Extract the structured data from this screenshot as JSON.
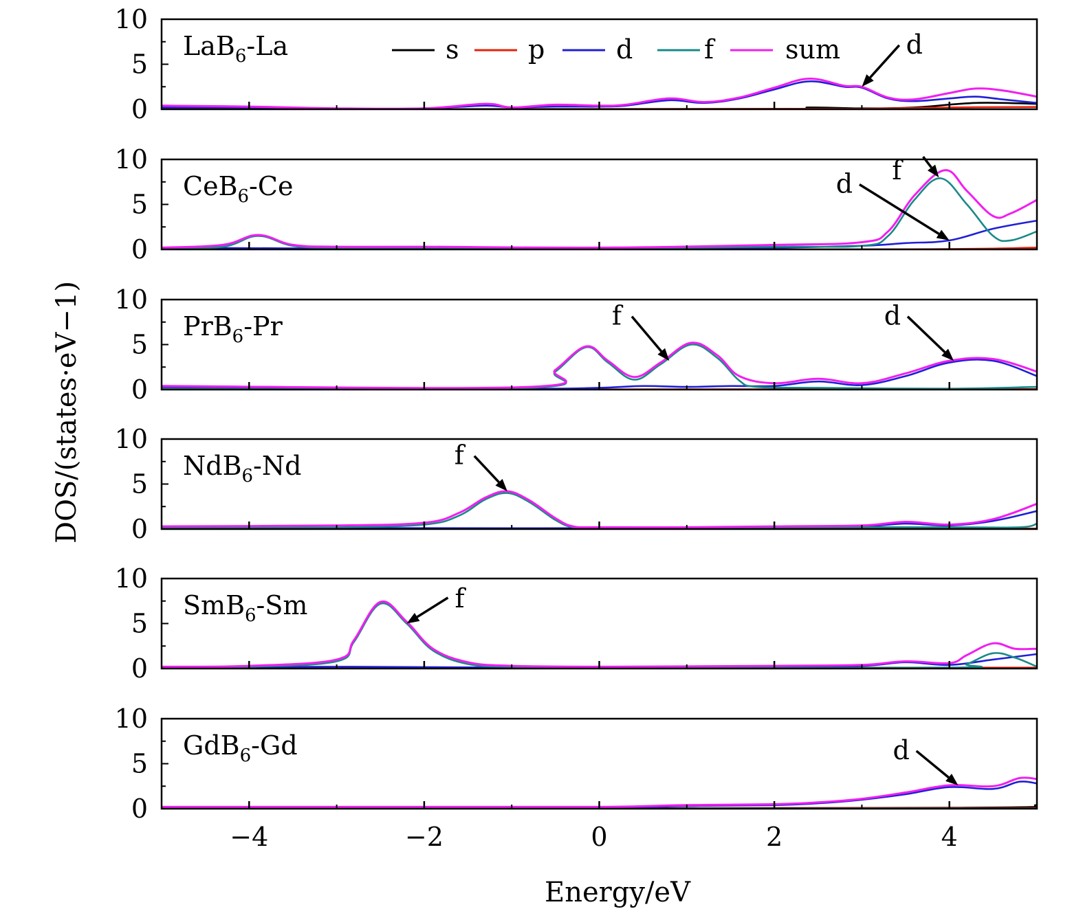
{
  "chart_data": {
    "type": "line",
    "xlabel": "Energy/eV",
    "ylabel": "DOS/(states·eV−1)",
    "xlim": [
      -5,
      5
    ],
    "ylim": [
      0,
      10
    ],
    "xticks": [
      -4,
      -2,
      0,
      2,
      4
    ],
    "xtick_labels": [
      "−4",
      "−2",
      "0",
      "2",
      "4"
    ],
    "yticks": [
      0,
      5,
      10
    ],
    "ytick_labels": [
      "0",
      "5",
      "10"
    ],
    "legend": {
      "placement": "top, inside first panel",
      "entries": [
        {
          "name": "s",
          "color": "#000000"
        },
        {
          "name": "p",
          "color": "#e8210d"
        },
        {
          "name": "d",
          "color": "#1f1fd6"
        },
        {
          "name": "f",
          "color": "#1a8a87"
        },
        {
          "name": "sum",
          "color": "#f01ff0"
        }
      ]
    },
    "panels": [
      {
        "title": "LaB",
        "title_sub": "6",
        "title_suffix": "-La",
        "series": [
          {
            "name": "s",
            "x": [
              -5,
              1.8,
              2.4,
              3,
              3.6,
              4.3,
              5
            ],
            "y": [
              0,
              0,
              0.2,
              0.1,
              0.2,
              0.7,
              0.6
            ]
          },
          {
            "name": "p",
            "x": [
              -5,
              2,
              3,
              4,
              5
            ],
            "y": [
              0,
              0.05,
              0.05,
              0.2,
              0.25
            ]
          },
          {
            "name": "d",
            "x": [
              -5,
              -4,
              -3,
              -2,
              -1.3,
              -1,
              -0.5,
              0,
              0.3,
              0.8,
              1.2,
              1.6,
              2,
              2.4,
              2.8,
              3,
              3.3,
              3.6,
              4,
              4.3,
              4.6,
              5
            ],
            "y": [
              0.2,
              0.2,
              0.05,
              0.1,
              0.4,
              0.2,
              0.3,
              0.3,
              0.4,
              1.0,
              0.7,
              1.2,
              2.2,
              3.1,
              2.5,
              2.4,
              1.2,
              0.9,
              1.2,
              1.4,
              1.1,
              0.7
            ]
          },
          {
            "name": "f",
            "x": [
              -5,
              4,
              5
            ],
            "y": [
              0,
              0,
              0
            ]
          },
          {
            "name": "sum",
            "x": [
              -5,
              -4,
              -3,
              -2,
              -1.3,
              -1,
              -0.5,
              0,
              0.3,
              0.8,
              1.2,
              1.6,
              2,
              2.4,
              2.8,
              3,
              3.3,
              3.6,
              4,
              4.3,
              4.6,
              5
            ],
            "y": [
              0.4,
              0.3,
              0.1,
              0.1,
              0.6,
              0.2,
              0.5,
              0.4,
              0.5,
              1.2,
              0.8,
              1.3,
              2.4,
              3.4,
              2.6,
              2.5,
              1.3,
              1.1,
              1.8,
              2.3,
              2.1,
              1.4
            ]
          }
        ],
        "annotations": [
          {
            "text": "d",
            "text_x": 3.6,
            "text_y": 6.2,
            "arrow_to": [
              3.0,
              2.5
            ]
          }
        ]
      },
      {
        "title": "CeB",
        "title_sub": "6",
        "title_suffix": "-Ce",
        "series": [
          {
            "name": "s",
            "x": [
              -5,
              5
            ],
            "y": [
              0,
              0
            ]
          },
          {
            "name": "p",
            "x": [
              -5,
              3,
              5
            ],
            "y": [
              0,
              0,
              0.2
            ]
          },
          {
            "name": "d",
            "x": [
              -5,
              -3,
              -1,
              0,
              2,
              3,
              3.5,
              4,
              4.5,
              5
            ],
            "y": [
              0.2,
              0.1,
              0.1,
              0.1,
              0.2,
              0.4,
              0.7,
              1.0,
              2.3,
              3.2
            ]
          },
          {
            "name": "f",
            "x": [
              -5,
              -4.3,
              -3.9,
              -3.5,
              -3,
              -2,
              0,
              2,
              3,
              3.3,
              3.6,
              3.9,
              4.2,
              4.5,
              4.7,
              5
            ],
            "y": [
              0.1,
              0.3,
              1.5,
              0.4,
              0.2,
              0.2,
              0.1,
              0.3,
              0.4,
              1.5,
              5.5,
              7.9,
              5.0,
              1.5,
              1.0,
              2.0
            ]
          },
          {
            "name": "sum",
            "x": [
              -5,
              -4.3,
              -3.9,
              -3.5,
              -3,
              -2,
              0,
              2,
              3,
              3.3,
              3.6,
              3.95,
              4.2,
              4.5,
              4.7,
              5
            ],
            "y": [
              0.2,
              0.5,
              1.6,
              0.5,
              0.3,
              0.3,
              0.2,
              0.5,
              0.8,
              2.0,
              6.0,
              8.8,
              6.5,
              3.7,
              4.0,
              5.5
            ]
          }
        ],
        "annotations": [
          {
            "text": "f",
            "text_x": 3.4,
            "text_y": 7.8,
            "arrow_to": [
              3.88,
              8.0
            ],
            "arrow_from": [
              3.7,
              10.3
            ]
          },
          {
            "text": "d",
            "text_x": 2.8,
            "text_y": 6.3,
            "arrow_to": [
              4.0,
              1.0
            ]
          }
        ]
      },
      {
        "title": "PrB",
        "title_sub": "6",
        "title_suffix": "-Pr",
        "series": [
          {
            "name": "s",
            "x": [
              -5,
              5
            ],
            "y": [
              0,
              0
            ]
          },
          {
            "name": "p",
            "x": [
              -5,
              5
            ],
            "y": [
              0,
              0.05
            ]
          },
          {
            "name": "d",
            "x": [
              -5,
              -1,
              0,
              0.5,
              1,
              1.5,
              2,
              2.5,
              3,
              3.5,
              4,
              4.5,
              5
            ],
            "y": [
              0.3,
              0.1,
              0.2,
              0.4,
              0.3,
              0.4,
              0.4,
              0.9,
              0.5,
              1.5,
              3.0,
              3.2,
              1.5
            ]
          },
          {
            "name": "f",
            "x": [
              -5,
              -0.8,
              -0.5,
              -0.15,
              0.1,
              0.4,
              0.7,
              1.05,
              1.35,
              1.6,
              1.8,
              2.5,
              4,
              5
            ],
            "y": [
              0.1,
              0.2,
              2.0,
              4.7,
              3.0,
              1.1,
              2.8,
              5.0,
              3.5,
              1.0,
              0.3,
              0.2,
              0.1,
              0.3
            ]
          },
          {
            "name": "sum",
            "x": [
              -5,
              -0.8,
              -0.5,
              -0.15,
              0.1,
              0.4,
              0.7,
              1.05,
              1.35,
              1.6,
              2,
              2.5,
              3,
              3.5,
              4,
              4.5,
              5
            ],
            "y": [
              0.4,
              0.3,
              2.2,
              4.8,
              3.2,
              1.4,
              3.0,
              5.2,
              3.8,
              1.5,
              0.7,
              1.2,
              0.7,
              1.8,
              3.2,
              3.4,
              2.0
            ]
          }
        ],
        "annotations": [
          {
            "text": "f",
            "text_x": 0.2,
            "text_y": 7.2,
            "arrow_to": [
              0.8,
              3.2
            ]
          },
          {
            "text": "d",
            "text_x": 3.35,
            "text_y": 7.2,
            "arrow_to": [
              4.05,
              3.2
            ]
          }
        ]
      },
      {
        "title": "NdB",
        "title_sub": "6",
        "title_suffix": "-Nd",
        "series": [
          {
            "name": "s",
            "x": [
              -5,
              5
            ],
            "y": [
              0,
              0
            ]
          },
          {
            "name": "p",
            "x": [
              -5,
              5
            ],
            "y": [
              0,
              0.05
            ]
          },
          {
            "name": "d",
            "x": [
              -5,
              -2,
              0,
              2,
              3,
              3.5,
              4,
              4.5,
              5
            ],
            "y": [
              0.2,
              0.1,
              0.1,
              0.2,
              0.3,
              0.6,
              0.4,
              0.9,
              2.0
            ]
          },
          {
            "name": "f",
            "x": [
              -5,
              -3,
              -2,
              -1.6,
              -1.3,
              -1.05,
              -0.8,
              -0.5,
              -0.3,
              0,
              2,
              4,
              4.8,
              5
            ],
            "y": [
              0.1,
              0.2,
              0.5,
              1.5,
              3.3,
              4.0,
              3.0,
              1.0,
              0.2,
              0.1,
              0.2,
              0.2,
              0.2,
              0.6
            ]
          },
          {
            "name": "sum",
            "x": [
              -5,
              -3,
              -2,
              -1.6,
              -1.3,
              -1.05,
              -0.8,
              -0.5,
              -0.3,
              0,
              1,
              2,
              3,
              3.5,
              4,
              4.5,
              5
            ],
            "y": [
              0.3,
              0.4,
              0.7,
              1.8,
              3.5,
              4.2,
              3.2,
              1.2,
              0.3,
              0.2,
              0.2,
              0.3,
              0.4,
              0.8,
              0.5,
              1.1,
              2.8
            ]
          }
        ],
        "annotations": [
          {
            "text": "f",
            "text_x": -1.6,
            "text_y": 7.2,
            "arrow_to": [
              -1.05,
              4.2
            ]
          }
        ]
      },
      {
        "title": "SmB",
        "title_sub": "6",
        "title_suffix": "-Sm",
        "series": [
          {
            "name": "s",
            "x": [
              -5,
              5
            ],
            "y": [
              0,
              0
            ]
          },
          {
            "name": "p",
            "x": [
              -5,
              3,
              5
            ],
            "y": [
              0,
              0.1,
              0.1
            ]
          },
          {
            "name": "d",
            "x": [
              -5,
              -3,
              -1,
              0,
              2,
              3,
              3.5,
              4,
              4.5,
              5
            ],
            "y": [
              0.1,
              0.2,
              0.1,
              0.1,
              0.2,
              0.3,
              0.7,
              0.4,
              1.0,
              1.6
            ]
          },
          {
            "name": "f",
            "x": [
              -5,
              -4,
              -3,
              -2.8,
              -2.5,
              -2.2,
              -1.9,
              -1.5,
              -1,
              0,
              4,
              4.2,
              4.5,
              4.75,
              5
            ],
            "y": [
              0.1,
              0.2,
              0.8,
              3.0,
              7.2,
              5.0,
              2.0,
              0.5,
              0.2,
              0.1,
              0.1,
              0.5,
              1.7,
              1.2,
              0.2
            ]
          },
          {
            "name": "sum",
            "x": [
              -5,
              -4,
              -3,
              -2.8,
              -2.5,
              -2.2,
              -1.9,
              -1.5,
              -1,
              0,
              2,
              3,
              3.5,
              4,
              4.2,
              4.5,
              4.75,
              5
            ],
            "y": [
              0.2,
              0.3,
              1.0,
              3.2,
              7.4,
              5.2,
              2.2,
              0.7,
              0.3,
              0.2,
              0.3,
              0.4,
              0.8,
              0.6,
              1.5,
              2.8,
              2.2,
              2.2
            ]
          }
        ],
        "annotations": [
          {
            "text": "f",
            "text_x": -1.65,
            "text_y": 6.8,
            "arrow_to": [
              -2.2,
              5.0
            ],
            "text_right": true
          }
        ]
      },
      {
        "title": "GdB",
        "title_sub": "6",
        "title_suffix": "-Gd",
        "series": [
          {
            "name": "s",
            "x": [
              -5,
              4,
              5
            ],
            "y": [
              0,
              0.1,
              0.4
            ]
          },
          {
            "name": "p",
            "x": [
              -5,
              5
            ],
            "y": [
              0,
              0.05
            ]
          },
          {
            "name": "d",
            "x": [
              -5,
              -2,
              0,
              1,
              2,
              2.5,
              3,
              3.5,
              4,
              4.5,
              4.8,
              5
            ],
            "y": [
              0.1,
              0.1,
              0.1,
              0.3,
              0.4,
              0.6,
              1.0,
              1.6,
              2.4,
              2.2,
              3.0,
              2.8
            ]
          },
          {
            "name": "f",
            "x": [
              -5,
              5
            ],
            "y": [
              0,
              0
            ]
          },
          {
            "name": "sum",
            "x": [
              -5,
              -2,
              0,
              1,
              2,
              2.5,
              3,
              3.5,
              4,
              4.5,
              4.8,
              5
            ],
            "y": [
              0.2,
              0.2,
              0.2,
              0.4,
              0.5,
              0.7,
              1.1,
              1.8,
              2.6,
              2.5,
              3.4,
              3.3
            ]
          }
        ],
        "annotations": [
          {
            "text": "d",
            "text_x": 3.45,
            "text_y": 5.5,
            "arrow_to": [
              4.1,
              2.6
            ]
          }
        ]
      }
    ]
  }
}
